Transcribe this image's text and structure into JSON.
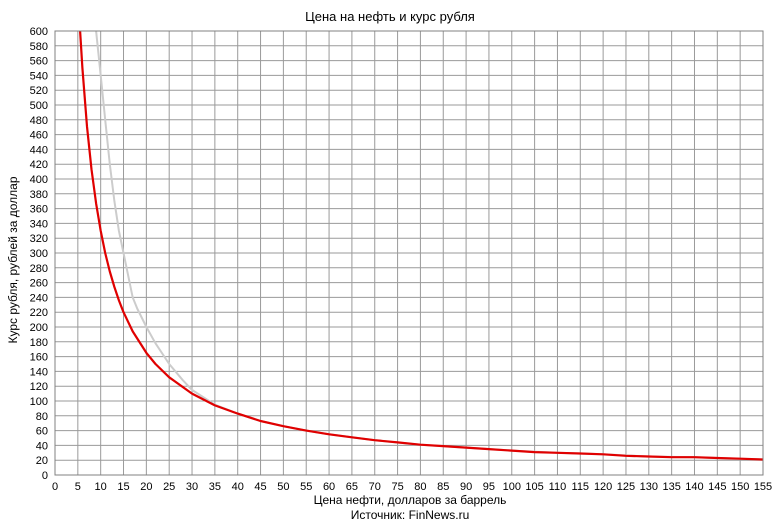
{
  "chart_data": {
    "type": "line",
    "title": "Цена на нефть и курс рубля",
    "xlabel": "Цена нефти, долларов за баррель",
    "ylabel": "Курс рубля, рублей за доллар",
    "source": "Источник: FinNews.ru",
    "xlim": [
      0,
      155
    ],
    "ylim": [
      0,
      600
    ],
    "x_ticks": [
      0,
      5,
      10,
      15,
      20,
      25,
      30,
      35,
      40,
      45,
      50,
      55,
      60,
      65,
      70,
      75,
      80,
      85,
      90,
      95,
      100,
      105,
      110,
      115,
      120,
      125,
      130,
      135,
      140,
      145,
      150,
      155
    ],
    "y_ticks": [
      0,
      20,
      40,
      60,
      80,
      100,
      120,
      140,
      160,
      180,
      200,
      220,
      240,
      260,
      280,
      300,
      320,
      340,
      360,
      380,
      400,
      420,
      440,
      460,
      480,
      500,
      520,
      540,
      560,
      580,
      600
    ],
    "grid": true,
    "series": [
      {
        "color": "#e00000",
        "x": [
          5.5,
          6,
          7,
          8,
          9,
          10,
          11,
          12,
          13,
          14,
          15,
          17,
          20,
          22,
          25,
          30,
          35,
          40,
          45,
          50,
          55,
          60,
          65,
          70,
          75,
          80,
          85,
          90,
          95,
          100,
          105,
          110,
          115,
          120,
          125,
          130,
          135,
          140,
          145,
          150,
          155
        ],
        "y": [
          600,
          550,
          471,
          413,
          367,
          330,
          300,
          275,
          254,
          236,
          220,
          194,
          165,
          150,
          132,
          110,
          94,
          83,
          73,
          66,
          60,
          55,
          51,
          47,
          44,
          41,
          39,
          37,
          35,
          33,
          31,
          30,
          29,
          28,
          26,
          25,
          24,
          24,
          23,
          22,
          21
        ]
      },
      {
        "color": "#cccccc",
        "x": [
          9,
          10,
          11,
          12,
          13,
          14,
          15,
          16,
          17,
          18,
          20,
          22,
          25,
          28,
          30,
          35,
          40,
          45,
          50,
          55,
          60,
          70,
          80,
          90,
          100,
          110,
          120,
          130,
          140,
          150,
          155
        ],
        "y": [
          600,
          540,
          480,
          420,
          370,
          330,
          300,
          270,
          240,
          225,
          200,
          178,
          150,
          128,
          115,
          95,
          83,
          73,
          66,
          60,
          55,
          47,
          41,
          37,
          33,
          30,
          28,
          25,
          24,
          22,
          21
        ]
      }
    ]
  }
}
